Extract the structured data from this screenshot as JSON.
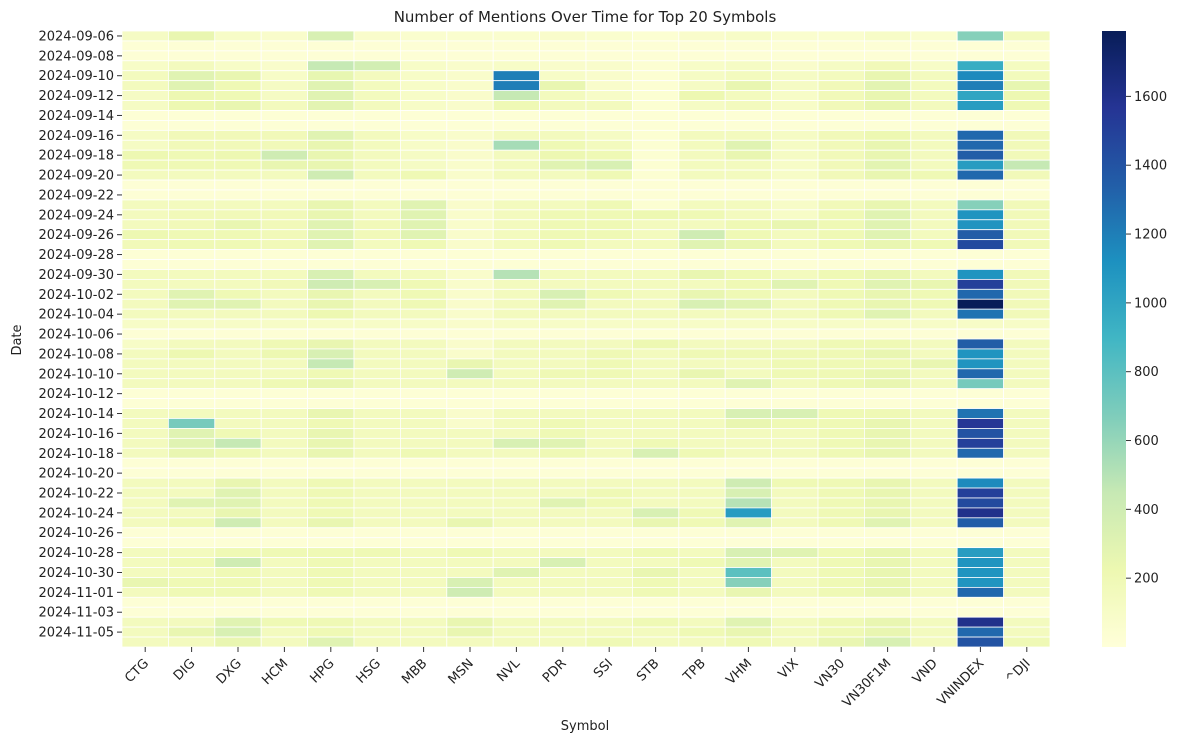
{
  "chart_data": {
    "type": "heatmap",
    "title": "Number of Mentions Over Time for Top 20 Symbols",
    "xlabel": "Symbol",
    "ylabel": "Date",
    "colormap": "YlGnBu",
    "vmin": 0,
    "vmax": 1790,
    "colorbar_ticks": [
      200,
      400,
      600,
      800,
      1000,
      1200,
      1400,
      1600
    ],
    "symbols": [
      "CTG",
      "DIG",
      "DXG",
      "HCM",
      "HPG",
      "HSG",
      "MBB",
      "MSN",
      "NVL",
      "PDR",
      "SSI",
      "STB",
      "TPB",
      "VHM",
      "VIX",
      "VN30",
      "VN30F1M",
      "VND",
      "VNINDEX",
      "^DJI"
    ],
    "dates": [
      "2024-09-06",
      "2024-09-07",
      "2024-09-08",
      "2024-09-09",
      "2024-09-10",
      "2024-09-11",
      "2024-09-12",
      "2024-09-13",
      "2024-09-14",
      "2024-09-15",
      "2024-09-16",
      "2024-09-17",
      "2024-09-18",
      "2024-09-19",
      "2024-09-20",
      "2024-09-21",
      "2024-09-22",
      "2024-09-23",
      "2024-09-24",
      "2024-09-25",
      "2024-09-26",
      "2024-09-27",
      "2024-09-28",
      "2024-09-29",
      "2024-09-30",
      "2024-10-01",
      "2024-10-02",
      "2024-10-03",
      "2024-10-04",
      "2024-10-05",
      "2024-10-06",
      "2024-10-07",
      "2024-10-08",
      "2024-10-09",
      "2024-10-10",
      "2024-10-11",
      "2024-10-12",
      "2024-10-13",
      "2024-10-14",
      "2024-10-15",
      "2024-10-16",
      "2024-10-17",
      "2024-10-18",
      "2024-10-19",
      "2024-10-20",
      "2024-10-21",
      "2024-10-22",
      "2024-10-23",
      "2024-10-24",
      "2024-10-25",
      "2024-10-26",
      "2024-10-27",
      "2024-10-28",
      "2024-10-29",
      "2024-10-30",
      "2024-10-31",
      "2024-11-01",
      "2024-11-02",
      "2024-11-03",
      "2024-11-04",
      "2024-11-05",
      "2024-11-06"
    ],
    "date_tick_labels": [
      "2024-09-06",
      "2024-09-08",
      "2024-09-10",
      "2024-09-12",
      "2024-09-14",
      "2024-09-16",
      "2024-09-18",
      "2024-09-20",
      "2024-09-22",
      "2024-09-24",
      "2024-09-26",
      "2024-09-28",
      "2024-09-30",
      "2024-10-02",
      "2024-10-04",
      "2024-10-06",
      "2024-10-08",
      "2024-10-10",
      "2024-10-12",
      "2024-10-14",
      "2024-10-16",
      "2024-10-18",
      "2024-10-20",
      "2024-10-22",
      "2024-10-24",
      "2024-10-26",
      "2024-10-28",
      "2024-10-30",
      "2024-11-01",
      "2024-11-03",
      "2024-11-05"
    ],
    "values": [
      [
        120,
        250,
        100,
        80,
        350,
        80,
        60,
        60,
        60,
        80,
        60,
        40,
        80,
        100,
        60,
        60,
        100,
        60,
        650,
        150
      ],
      [
        20,
        20,
        20,
        20,
        20,
        20,
        20,
        20,
        20,
        20,
        20,
        20,
        20,
        20,
        20,
        20,
        20,
        20,
        20,
        20
      ],
      [
        20,
        20,
        20,
        20,
        20,
        20,
        20,
        20,
        20,
        20,
        20,
        20,
        20,
        20,
        20,
        20,
        20,
        20,
        20,
        20
      ],
      [
        100,
        150,
        100,
        80,
        450,
        380,
        100,
        80,
        100,
        80,
        80,
        40,
        100,
        120,
        80,
        120,
        180,
        100,
        950,
        140
      ],
      [
        150,
        300,
        250,
        100,
        260,
        150,
        100,
        80,
        1200,
        100,
        80,
        40,
        120,
        150,
        120,
        150,
        250,
        150,
        1150,
        160
      ],
      [
        150,
        300,
        200,
        120,
        300,
        150,
        100,
        80,
        1200,
        250,
        80,
        40,
        120,
        250,
        120,
        180,
        280,
        150,
        1200,
        260
      ],
      [
        120,
        220,
        200,
        120,
        300,
        150,
        100,
        80,
        450,
        150,
        100,
        40,
        220,
        150,
        100,
        180,
        250,
        150,
        1000,
        220
      ],
      [
        120,
        220,
        250,
        150,
        280,
        150,
        100,
        80,
        200,
        150,
        150,
        40,
        120,
        150,
        100,
        180,
        250,
        150,
        1050,
        200
      ],
      [
        20,
        20,
        20,
        20,
        20,
        20,
        20,
        20,
        20,
        20,
        20,
        20,
        20,
        20,
        20,
        20,
        20,
        20,
        20,
        20
      ],
      [
        20,
        20,
        20,
        20,
        20,
        20,
        20,
        20,
        20,
        20,
        20,
        20,
        20,
        20,
        20,
        20,
        20,
        20,
        20,
        20
      ],
      [
        120,
        180,
        180,
        180,
        300,
        150,
        100,
        80,
        150,
        150,
        120,
        40,
        150,
        150,
        120,
        180,
        220,
        150,
        1300,
        180
      ],
      [
        120,
        180,
        180,
        180,
        250,
        150,
        100,
        80,
        550,
        200,
        150,
        40,
        150,
        300,
        120,
        180,
        250,
        150,
        1300,
        180
      ],
      [
        220,
        200,
        220,
        400,
        250,
        150,
        120,
        80,
        150,
        220,
        200,
        40,
        150,
        250,
        120,
        180,
        250,
        150,
        1350,
        180
      ],
      [
        200,
        200,
        200,
        250,
        250,
        150,
        120,
        80,
        150,
        300,
        350,
        40,
        150,
        150,
        100,
        180,
        280,
        150,
        1050,
        450
      ],
      [
        150,
        150,
        150,
        150,
        400,
        150,
        200,
        80,
        150,
        150,
        200,
        40,
        150,
        150,
        100,
        180,
        250,
        200,
        1300,
        180
      ],
      [
        20,
        20,
        20,
        20,
        20,
        20,
        20,
        20,
        20,
        20,
        20,
        20,
        20,
        20,
        20,
        20,
        20,
        20,
        20,
        20
      ],
      [
        20,
        20,
        20,
        20,
        20,
        20,
        20,
        20,
        20,
        20,
        20,
        20,
        20,
        20,
        20,
        20,
        20,
        20,
        20,
        20
      ],
      [
        150,
        150,
        150,
        150,
        250,
        150,
        300,
        80,
        150,
        150,
        200,
        40,
        150,
        150,
        100,
        180,
        250,
        150,
        650,
        180
      ],
      [
        150,
        180,
        180,
        180,
        250,
        150,
        300,
        80,
        150,
        200,
        200,
        220,
        200,
        150,
        100,
        200,
        300,
        150,
        1100,
        180
      ],
      [
        150,
        180,
        250,
        180,
        300,
        180,
        300,
        80,
        150,
        200,
        200,
        150,
        150,
        200,
        250,
        200,
        300,
        150,
        1100,
        180
      ],
      [
        220,
        200,
        200,
        180,
        300,
        180,
        300,
        80,
        150,
        200,
        200,
        150,
        400,
        200,
        150,
        200,
        300,
        150,
        1350,
        180
      ],
      [
        180,
        200,
        200,
        180,
        300,
        150,
        200,
        80,
        150,
        200,
        150,
        150,
        300,
        250,
        150,
        200,
        250,
        200,
        1450,
        180
      ],
      [
        20,
        20,
        20,
        20,
        20,
        20,
        20,
        20,
        20,
        20,
        20,
        20,
        20,
        20,
        20,
        20,
        20,
        20,
        20,
        20
      ],
      [
        20,
        20,
        20,
        20,
        20,
        20,
        20,
        20,
        20,
        20,
        20,
        20,
        20,
        20,
        20,
        20,
        20,
        20,
        20,
        20
      ],
      [
        150,
        150,
        150,
        150,
        350,
        150,
        150,
        80,
        500,
        150,
        150,
        150,
        250,
        200,
        150,
        200,
        250,
        150,
        1100,
        180
      ],
      [
        150,
        150,
        150,
        180,
        400,
        350,
        200,
        80,
        150,
        150,
        150,
        150,
        150,
        200,
        300,
        200,
        300,
        250,
        1500,
        180
      ],
      [
        150,
        300,
        200,
        150,
        250,
        150,
        200,
        80,
        150,
        350,
        200,
        150,
        250,
        200,
        150,
        200,
        250,
        200,
        1300,
        180
      ],
      [
        150,
        300,
        300,
        150,
        250,
        150,
        200,
        80,
        150,
        300,
        150,
        150,
        350,
        300,
        150,
        200,
        250,
        200,
        1790,
        180
      ],
      [
        150,
        150,
        150,
        150,
        220,
        150,
        150,
        80,
        150,
        150,
        150,
        150,
        150,
        150,
        150,
        200,
        300,
        150,
        1250,
        180
      ],
      [
        100,
        100,
        100,
        100,
        100,
        100,
        100,
        80,
        100,
        100,
        100,
        100,
        100,
        100,
        100,
        100,
        100,
        100,
        100,
        100
      ],
      [
        20,
        20,
        20,
        20,
        20,
        20,
        20,
        20,
        20,
        20,
        20,
        20,
        20,
        20,
        20,
        20,
        20,
        20,
        20,
        20
      ],
      [
        100,
        150,
        150,
        200,
        250,
        150,
        150,
        80,
        150,
        150,
        150,
        220,
        150,
        150,
        150,
        200,
        200,
        150,
        1350,
        150
      ],
      [
        150,
        220,
        150,
        220,
        350,
        150,
        150,
        80,
        150,
        150,
        200,
        150,
        200,
        200,
        200,
        200,
        250,
        150,
        1100,
        150
      ],
      [
        150,
        150,
        150,
        150,
        450,
        150,
        150,
        250,
        150,
        150,
        200,
        150,
        150,
        150,
        200,
        200,
        200,
        250,
        1100,
        150
      ],
      [
        150,
        150,
        150,
        150,
        200,
        150,
        150,
        400,
        150,
        200,
        200,
        150,
        250,
        150,
        200,
        200,
        250,
        150,
        1300,
        150
      ],
      [
        150,
        150,
        150,
        200,
        250,
        150,
        150,
        150,
        150,
        150,
        150,
        150,
        150,
        300,
        150,
        200,
        250,
        150,
        700,
        150
      ],
      [
        20,
        20,
        20,
        20,
        20,
        20,
        20,
        20,
        20,
        20,
        20,
        20,
        20,
        20,
        20,
        20,
        20,
        20,
        20,
        20
      ],
      [
        20,
        20,
        20,
        20,
        20,
        20,
        20,
        20,
        20,
        20,
        20,
        20,
        20,
        20,
        20,
        20,
        20,
        20,
        20,
        20
      ],
      [
        150,
        150,
        150,
        150,
        250,
        150,
        150,
        80,
        150,
        150,
        150,
        150,
        150,
        350,
        350,
        200,
        200,
        150,
        1250,
        150
      ],
      [
        150,
        700,
        150,
        150,
        200,
        150,
        150,
        80,
        150,
        200,
        150,
        150,
        150,
        250,
        200,
        200,
        250,
        150,
        1550,
        150
      ],
      [
        150,
        300,
        200,
        150,
        250,
        150,
        150,
        150,
        150,
        200,
        150,
        150,
        150,
        150,
        150,
        200,
        250,
        150,
        1400,
        150
      ],
      [
        150,
        300,
        450,
        150,
        250,
        150,
        150,
        150,
        350,
        300,
        150,
        200,
        150,
        150,
        150,
        200,
        250,
        150,
        1500,
        150
      ],
      [
        150,
        250,
        200,
        150,
        250,
        150,
        200,
        150,
        150,
        200,
        150,
        350,
        200,
        150,
        150,
        200,
        250,
        150,
        1300,
        150
      ],
      [
        20,
        20,
        20,
        20,
        20,
        20,
        20,
        20,
        20,
        20,
        20,
        20,
        20,
        20,
        20,
        20,
        20,
        20,
        20,
        20
      ],
      [
        20,
        20,
        20,
        20,
        20,
        20,
        20,
        20,
        20,
        20,
        20,
        20,
        20,
        20,
        20,
        20,
        20,
        20,
        20,
        20
      ],
      [
        150,
        150,
        250,
        150,
        200,
        150,
        150,
        150,
        150,
        150,
        150,
        150,
        150,
        400,
        200,
        200,
        250,
        150,
        1150,
        150
      ],
      [
        150,
        150,
        300,
        150,
        200,
        150,
        150,
        150,
        150,
        150,
        200,
        150,
        150,
        350,
        150,
        200,
        250,
        150,
        1500,
        150
      ],
      [
        150,
        300,
        300,
        150,
        200,
        150,
        150,
        150,
        150,
        300,
        200,
        150,
        150,
        500,
        150,
        200,
        250,
        150,
        1450,
        150
      ],
      [
        150,
        150,
        250,
        150,
        200,
        150,
        150,
        150,
        150,
        150,
        150,
        350,
        200,
        1050,
        150,
        200,
        250,
        150,
        1600,
        150
      ],
      [
        150,
        200,
        400,
        150,
        250,
        150,
        150,
        250,
        150,
        150,
        150,
        250,
        200,
        300,
        150,
        200,
        300,
        150,
        1350,
        150
      ],
      [
        20,
        20,
        20,
        20,
        20,
        20,
        20,
        20,
        20,
        20,
        20,
        20,
        20,
        20,
        20,
        20,
        20,
        20,
        20,
        20
      ],
      [
        20,
        20,
        20,
        20,
        20,
        20,
        20,
        20,
        20,
        20,
        20,
        20,
        20,
        20,
        20,
        20,
        20,
        20,
        20,
        20
      ],
      [
        150,
        150,
        200,
        200,
        200,
        200,
        150,
        200,
        150,
        150,
        150,
        200,
        150,
        350,
        300,
        200,
        250,
        150,
        1050,
        150
      ],
      [
        150,
        200,
        400,
        150,
        200,
        150,
        150,
        150,
        150,
        350,
        150,
        150,
        200,
        300,
        150,
        200,
        250,
        150,
        1100,
        150
      ],
      [
        150,
        150,
        200,
        150,
        200,
        150,
        150,
        150,
        300,
        150,
        150,
        250,
        150,
        800,
        150,
        200,
        250,
        150,
        1100,
        150
      ],
      [
        250,
        200,
        200,
        150,
        200,
        150,
        150,
        350,
        150,
        150,
        150,
        200,
        150,
        650,
        150,
        200,
        250,
        150,
        1100,
        150
      ],
      [
        150,
        200,
        200,
        150,
        200,
        150,
        150,
        400,
        150,
        150,
        150,
        200,
        150,
        250,
        150,
        200,
        250,
        150,
        1300,
        150
      ],
      [
        20,
        20,
        20,
        20,
        20,
        20,
        20,
        20,
        20,
        20,
        20,
        20,
        20,
        20,
        20,
        20,
        20,
        20,
        20,
        20
      ],
      [
        20,
        20,
        20,
        20,
        20,
        20,
        20,
        20,
        20,
        20,
        20,
        20,
        20,
        20,
        20,
        20,
        20,
        20,
        20,
        20
      ],
      [
        150,
        150,
        300,
        200,
        200,
        150,
        150,
        250,
        150,
        150,
        150,
        200,
        150,
        300,
        150,
        200,
        250,
        150,
        1600,
        150
      ],
      [
        150,
        250,
        350,
        150,
        200,
        150,
        150,
        250,
        150,
        150,
        150,
        150,
        200,
        250,
        150,
        200,
        250,
        150,
        1300,
        150
      ],
      [
        150,
        150,
        250,
        150,
        300,
        150,
        150,
        150,
        150,
        150,
        200,
        150,
        150,
        200,
        150,
        250,
        350,
        150,
        1400,
        200
      ]
    ]
  }
}
